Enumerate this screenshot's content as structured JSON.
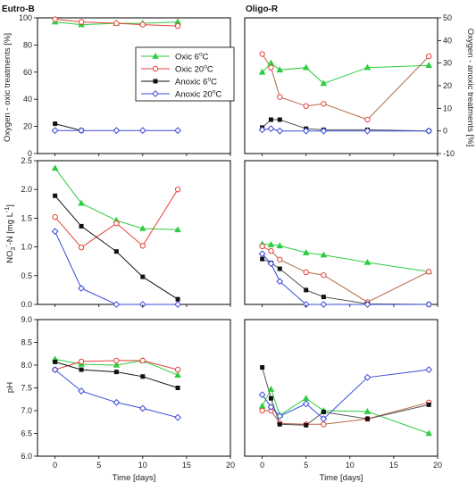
{
  "colors": {
    "oxic6": "#2ecc40",
    "oxic20": "#e8423b",
    "anoxic6": "#111111",
    "anoxic20": "#3a4ad8",
    "oligo_oxic20_line": "#b06a45",
    "oligo_anoxic6_line": "#555555"
  },
  "legend": {
    "items": [
      {
        "key": "oxic6",
        "label": "Oxic 6",
        "sup": "o",
        "unit": "C",
        "marker": "triangle-filled"
      },
      {
        "key": "oxic20",
        "label": "Oxic 20",
        "sup": "o",
        "unit": "C",
        "marker": "circle-open"
      },
      {
        "key": "anoxic6",
        "label": "Anoxic 6",
        "sup": "o",
        "unit": "C",
        "marker": "square-filled"
      },
      {
        "key": "anoxic20",
        "label": "Anoxic 20",
        "sup": "o",
        "unit": "C",
        "marker": "diamond-open"
      }
    ]
  },
  "labels": {
    "title_left": "Eutro-B",
    "title_right": "Oligo-R",
    "y_oxic": "Oxygen - oxic treatments [%]",
    "y_anoxic": "Oxygen - anoxic treatments [%]",
    "y_no3_pre": "NO",
    "y_no3_sub": "3",
    "y_no3_sup": "-",
    "y_no3_mid": "-N [mg L",
    "y_no3_sup2": "-1",
    "y_no3_end": "]",
    "y_ph": "pH",
    "x_label": "Time [days]"
  },
  "chart_data": [
    {
      "type": "line",
      "panel": "Eutro-B oxygen",
      "title": "Eutro-B",
      "xlabel": "",
      "ylabel": "Oxygen - oxic treatments [%]",
      "xlim": [
        -2,
        20
      ],
      "ylim": [
        0,
        100
      ],
      "yticks": [
        "0",
        "20",
        "40",
        "60",
        "80",
        "100"
      ],
      "series": [
        {
          "key": "oxic6",
          "x": [
            0,
            3,
            7,
            10,
            14
          ],
          "y": [
            97,
            95,
            96,
            96,
            97
          ]
        },
        {
          "key": "oxic20",
          "x": [
            0,
            3,
            7,
            10,
            14
          ],
          "y": [
            99,
            97,
            96,
            95,
            94
          ]
        },
        {
          "key": "anoxic6",
          "x": [
            0,
            3
          ],
          "y": [
            22,
            17
          ]
        },
        {
          "key": "anoxic20",
          "x": [
            0,
            3,
            7,
            10,
            14
          ],
          "y": [
            17,
            17,
            17,
            17,
            17
          ]
        }
      ]
    },
    {
      "type": "line",
      "panel": "Oligo-R oxygen",
      "title": "Oligo-R",
      "xlabel": "",
      "ylabel": "Oxygen - anoxic treatments [%]",
      "xlim": [
        -2,
        20
      ],
      "ylim": [
        -10,
        50
      ],
      "yticks": [
        "-10",
        "0",
        "10",
        "20",
        "30",
        "40",
        "50"
      ],
      "series": [
        {
          "key": "oxic6",
          "x": [
            0,
            1,
            2,
            5,
            7,
            12,
            19
          ],
          "y": [
            26,
            30,
            27,
            28,
            21,
            28,
            29
          ]
        },
        {
          "key": "oxic20",
          "x": [
            0,
            1,
            2,
            5,
            7,
            12,
            19
          ],
          "y": [
            34,
            28,
            15,
            11,
            12,
            5,
            33
          ]
        },
        {
          "key": "anoxic6",
          "x": [
            0,
            1,
            2,
            5,
            7,
            12,
            19
          ],
          "y": [
            1.5,
            5,
            5,
            1,
            0.5,
            0.5,
            0
          ]
        },
        {
          "key": "anoxic20",
          "x": [
            0,
            1,
            2,
            5,
            7,
            12,
            19
          ],
          "y": [
            0.5,
            1,
            0,
            0,
            0,
            0,
            0
          ]
        }
      ]
    },
    {
      "type": "line",
      "panel": "Eutro-B nitrate",
      "xlabel": "",
      "ylabel": "NO3--N [mg L-1]",
      "xlim": [
        -2,
        20
      ],
      "ylim": [
        0,
        2.5
      ],
      "yticks": [
        "0.0",
        "0.5",
        "1.0",
        "1.5",
        "2.0",
        "2.5"
      ],
      "series": [
        {
          "key": "oxic6",
          "x": [
            0,
            3,
            7,
            10,
            14
          ],
          "y": [
            2.37,
            1.76,
            1.46,
            1.32,
            1.3
          ]
        },
        {
          "key": "oxic20",
          "x": [
            0,
            3,
            7,
            10,
            14
          ],
          "y": [
            1.52,
            0.99,
            1.41,
            1.02,
            2.0
          ]
        },
        {
          "key": "anoxic6",
          "x": [
            0,
            3,
            7,
            10,
            14
          ],
          "y": [
            1.89,
            1.36,
            0.92,
            0.48,
            0.09
          ]
        },
        {
          "key": "anoxic20",
          "x": [
            0,
            3,
            7,
            10,
            14
          ],
          "y": [
            1.27,
            0.28,
            0,
            0,
            0
          ]
        }
      ]
    },
    {
      "type": "line",
      "panel": "Oligo-R nitrate",
      "xlim": [
        -2,
        20
      ],
      "ylim": [
        0,
        2.5
      ],
      "series": [
        {
          "key": "oxic6",
          "x": [
            0,
            1,
            2,
            5,
            7,
            12,
            19
          ],
          "y": [
            1.05,
            1.04,
            1.02,
            0.9,
            0.86,
            0.73,
            0.57
          ]
        },
        {
          "key": "oxic20",
          "x": [
            0,
            1,
            2,
            5,
            7,
            12,
            19
          ],
          "y": [
            1.01,
            0.93,
            0.78,
            0.56,
            0.51,
            0.04,
            0.57
          ]
        },
        {
          "key": "anoxic6",
          "x": [
            0,
            1,
            2,
            5,
            7,
            12,
            19
          ],
          "y": [
            0.79,
            0.72,
            0.62,
            0.25,
            0.13,
            0.01,
            0
          ]
        },
        {
          "key": "anoxic20",
          "x": [
            0,
            1,
            2,
            5,
            7,
            12,
            19
          ],
          "y": [
            0.88,
            0.71,
            0.4,
            0,
            0,
            0,
            0
          ]
        }
      ]
    },
    {
      "type": "line",
      "panel": "Eutro-B pH",
      "xlabel": "Time [days]",
      "ylabel": "pH",
      "xlim": [
        -2,
        20
      ],
      "ylim": [
        6.0,
        9.0
      ],
      "yticks": [
        "6.0",
        "6.5",
        "7.0",
        "7.5",
        "8.0",
        "8.5",
        "9.0"
      ],
      "xticks": [
        "0",
        "5",
        "10",
        "15",
        "20"
      ],
      "series": [
        {
          "key": "oxic6",
          "x": [
            0,
            3,
            7,
            10,
            14
          ],
          "y": [
            8.13,
            8.02,
            8.0,
            8.1,
            7.78
          ]
        },
        {
          "key": "oxic20",
          "x": [
            0,
            3,
            7,
            10,
            14
          ],
          "y": [
            7.9,
            8.08,
            8.1,
            8.1,
            7.9
          ]
        },
        {
          "key": "anoxic6",
          "x": [
            0,
            3,
            7,
            10,
            14
          ],
          "y": [
            8.07,
            7.9,
            7.85,
            7.75,
            7.5
          ]
        },
        {
          "key": "anoxic20",
          "x": [
            0,
            3,
            7,
            10,
            14
          ],
          "y": [
            7.9,
            7.43,
            7.18,
            7.05,
            6.85
          ]
        }
      ]
    },
    {
      "type": "line",
      "panel": "Oligo-R pH",
      "xlabel": "Time [days]",
      "xlim": [
        -2,
        20
      ],
      "ylim": [
        6.0,
        9.0
      ],
      "xticks": [
        "0",
        "5",
        "10",
        "15",
        "20"
      ],
      "series": [
        {
          "key": "oxic6",
          "x": [
            0,
            1,
            2,
            5,
            7,
            12,
            19
          ],
          "y": [
            7.1,
            7.47,
            6.9,
            7.27,
            7.0,
            6.98,
            6.5
          ]
        },
        {
          "key": "oxic20",
          "x": [
            0,
            1,
            2,
            5,
            7,
            12,
            19
          ],
          "y": [
            7.0,
            7.0,
            6.72,
            6.7,
            6.7,
            6.82,
            7.18
          ]
        },
        {
          "key": "anoxic6",
          "x": [
            0,
            1,
            2,
            5,
            7,
            12,
            19
          ],
          "y": [
            7.95,
            7.27,
            6.7,
            6.68,
            6.97,
            6.82,
            7.13
          ]
        },
        {
          "key": "anoxic20",
          "x": [
            0,
            1,
            2,
            5,
            7,
            12,
            19
          ],
          "y": [
            7.35,
            7.08,
            6.88,
            7.15,
            6.82,
            7.73,
            7.9
          ]
        }
      ]
    }
  ]
}
